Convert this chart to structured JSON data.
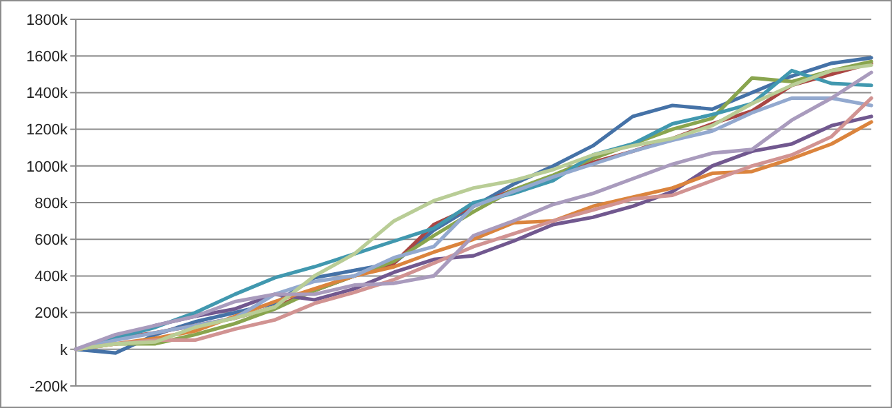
{
  "chart_data": {
    "type": "line",
    "categories": [
      null,
      null,
      null,
      null,
      null,
      null,
      null,
      null,
      null,
      null,
      null,
      null,
      null,
      null,
      null,
      null,
      null,
      null,
      null,
      null,
      null
    ],
    "ylim": [
      -200,
      1800
    ],
    "yticks": [
      {
        "value": -200,
        "label": "-200k"
      },
      {
        "value": 0,
        "label": "k"
      },
      {
        "value": 200,
        "label": "200k"
      },
      {
        "value": 400,
        "label": "400k"
      },
      {
        "value": 600,
        "label": "600k"
      },
      {
        "value": 800,
        "label": "800k"
      },
      {
        "value": 1000,
        "label": "1000k"
      },
      {
        "value": 1200,
        "label": "1200k"
      },
      {
        "value": 1400,
        "label": "1400k"
      },
      {
        "value": 1600,
        "label": "1600k"
      },
      {
        "value": 1800,
        "label": "1800k"
      }
    ],
    "grid": "y",
    "marker": "none",
    "line_style": "solid",
    "series": [
      {
        "color": "#4572a7",
        "values": [
          0,
          -20,
          80,
          150,
          200,
          250,
          390,
          430,
          470,
          650,
          780,
          900,
          1000,
          1110,
          1270,
          1330,
          1310,
          1400,
          1490,
          1560,
          1590
        ]
      },
      {
        "color": "#aa4643",
        "values": [
          0,
          60,
          90,
          130,
          170,
          230,
          320,
          400,
          470,
          680,
          780,
          870,
          940,
          1020,
          1080,
          1150,
          1230,
          1300,
          1440,
          1500,
          1560
        ]
      },
      {
        "color": "#89a54e",
        "values": [
          0,
          30,
          30,
          80,
          140,
          220,
          320,
          400,
          480,
          620,
          750,
          870,
          950,
          1040,
          1120,
          1200,
          1260,
          1480,
          1460,
          1520,
          1570
        ]
      },
      {
        "color": "#71588f",
        "values": [
          0,
          60,
          130,
          180,
          220,
          300,
          270,
          330,
          420,
          490,
          510,
          590,
          680,
          720,
          780,
          860,
          1000,
          1080,
          1120,
          1220,
          1270
        ]
      },
      {
        "color": "#4198af",
        "values": [
          0,
          60,
          120,
          200,
          300,
          390,
          450,
          520,
          590,
          660,
          800,
          850,
          920,
          1060,
          1120,
          1230,
          1280,
          1340,
          1520,
          1450,
          1440
        ]
      },
      {
        "color": "#db843d",
        "values": [
          0,
          30,
          60,
          100,
          180,
          260,
          330,
          400,
          450,
          530,
          600,
          690,
          700,
          780,
          830,
          880,
          960,
          970,
          1040,
          1120,
          1240
        ]
      },
      {
        "color": "#93a9cf",
        "values": [
          0,
          50,
          90,
          130,
          170,
          300,
          370,
          400,
          500,
          560,
          780,
          860,
          940,
          1010,
          1080,
          1140,
          1190,
          1290,
          1370,
          1370,
          1330
        ]
      },
      {
        "color": "#d19392",
        "values": [
          0,
          30,
          50,
          50,
          110,
          160,
          250,
          310,
          380,
          470,
          560,
          630,
          700,
          760,
          820,
          840,
          920,
          1000,
          1060,
          1160,
          1370
        ]
      },
      {
        "color": "#b9cd96",
        "values": [
          0,
          30,
          40,
          120,
          170,
          230,
          400,
          520,
          700,
          810,
          880,
          920,
          980,
          1060,
          1110,
          1150,
          1220,
          1340,
          1440,
          1520,
          1550
        ]
      },
      {
        "color": "#a99bbd",
        "values": [
          0,
          80,
          130,
          180,
          260,
          300,
          300,
          350,
          360,
          400,
          620,
          700,
          790,
          850,
          930,
          1010,
          1070,
          1090,
          1250,
          1370,
          1510
        ]
      }
    ]
  }
}
